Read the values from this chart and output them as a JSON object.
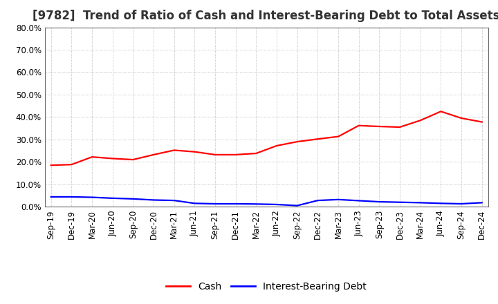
{
  "title": "[9782]  Trend of Ratio of Cash and Interest-Bearing Debt to Total Assets",
  "x_labels": [
    "Sep-19",
    "Dec-19",
    "Mar-20",
    "Jun-20",
    "Sep-20",
    "Dec-20",
    "Mar-21",
    "Jun-21",
    "Sep-21",
    "Dec-21",
    "Mar-22",
    "Jun-22",
    "Sep-22",
    "Dec-22",
    "Mar-23",
    "Jun-23",
    "Sep-23",
    "Dec-23",
    "Mar-24",
    "Jun-24",
    "Sep-24",
    "Dec-24"
  ],
  "cash": [
    0.185,
    0.188,
    0.222,
    0.215,
    0.21,
    0.232,
    0.252,
    0.245,
    0.232,
    0.232,
    0.238,
    0.272,
    0.29,
    0.302,
    0.313,
    0.362,
    0.358,
    0.355,
    0.385,
    0.425,
    0.395,
    0.378
  ],
  "ibd": [
    0.044,
    0.044,
    0.042,
    0.038,
    0.035,
    0.03,
    0.028,
    0.015,
    0.013,
    0.013,
    0.012,
    0.01,
    0.005,
    0.028,
    0.032,
    0.027,
    0.022,
    0.02,
    0.018,
    0.015,
    0.013,
    0.018
  ],
  "cash_color": "#FF0000",
  "ibd_color": "#0000FF",
  "background_color": "#FFFFFF",
  "plot_bg_color": "#FFFFFF",
  "grid_color": "#AAAAAA",
  "ylim": [
    0.0,
    0.8
  ],
  "yticks": [
    0.0,
    0.1,
    0.2,
    0.3,
    0.4,
    0.5,
    0.6,
    0.7,
    0.8
  ],
  "legend_labels": [
    "Cash",
    "Interest-Bearing Debt"
  ],
  "title_fontsize": 12,
  "tick_fontsize": 8.5,
  "legend_fontsize": 10,
  "line_width": 1.6
}
